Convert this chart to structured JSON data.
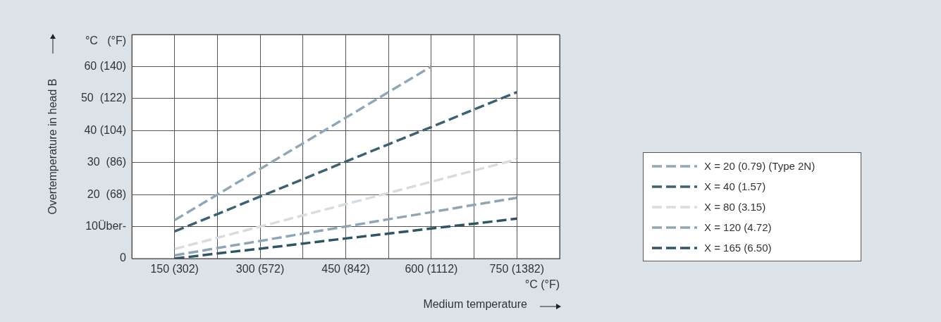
{
  "chart_data": {
    "type": "line",
    "xlabel": "Medium temperature",
    "ylabel": "Overtemperature in head B",
    "annotations": [
      "°C   (°F)",
      "°C (°F)"
    ],
    "categories": [
      null,
      "150 (302)",
      null,
      "300 (572)",
      null,
      "450 (842)",
      null,
      "600 (1112)",
      null,
      "750 (1382)",
      null
    ],
    "ylim": [
      0,
      70
    ],
    "yticks": [
      {
        "value": 0,
        "label": "0"
      },
      {
        "value": 10,
        "label": "10Über-"
      },
      {
        "value": 20,
        "label": "20  (68)"
      },
      {
        "value": 30,
        "label": "30  (86)"
      },
      {
        "value": 40,
        "label": "40 (104)"
      },
      {
        "value": 50,
        "label": "50  (122)"
      },
      {
        "value": 60,
        "label": "60 (140)"
      },
      {
        "value": 70,
        "label": null
      }
    ],
    "grid": true,
    "legend": "right",
    "marker": "none",
    "line_style": "dashed",
    "series": [
      {
        "name": "X = 20 (0.79) (Type 2N)",
        "color": "#8fa8b5",
        "values": [
          null,
          12,
          20,
          28,
          36,
          44,
          52,
          60,
          null,
          null,
          null
        ]
      },
      {
        "name": "X = 40 (1.57)",
        "color": "#3d6170",
        "values": [
          null,
          8.5,
          13.9,
          19.4,
          24.8,
          30.3,
          35.7,
          41.1,
          46.6,
          52,
          null
        ]
      },
      {
        "name": "X = 80 (3.15)",
        "color": "#d5dde2",
        "values": [
          null,
          3,
          6.5,
          10,
          13.5,
          17,
          20.5,
          24,
          27.5,
          31,
          null
        ]
      },
      {
        "name": "X = 120 (4.72)",
        "color": "#8ea6b3",
        "values": [
          null,
          1,
          3.3,
          5.5,
          7.8,
          10,
          12.3,
          14.5,
          16.8,
          19,
          null
        ]
      },
      {
        "name": "X = 165 (6.50)",
        "color": "#2f5464",
        "values": [
          null,
          0,
          1.6,
          3.1,
          4.7,
          6.3,
          7.8,
          9.4,
          10.9,
          12.5,
          null
        ]
      }
    ]
  }
}
